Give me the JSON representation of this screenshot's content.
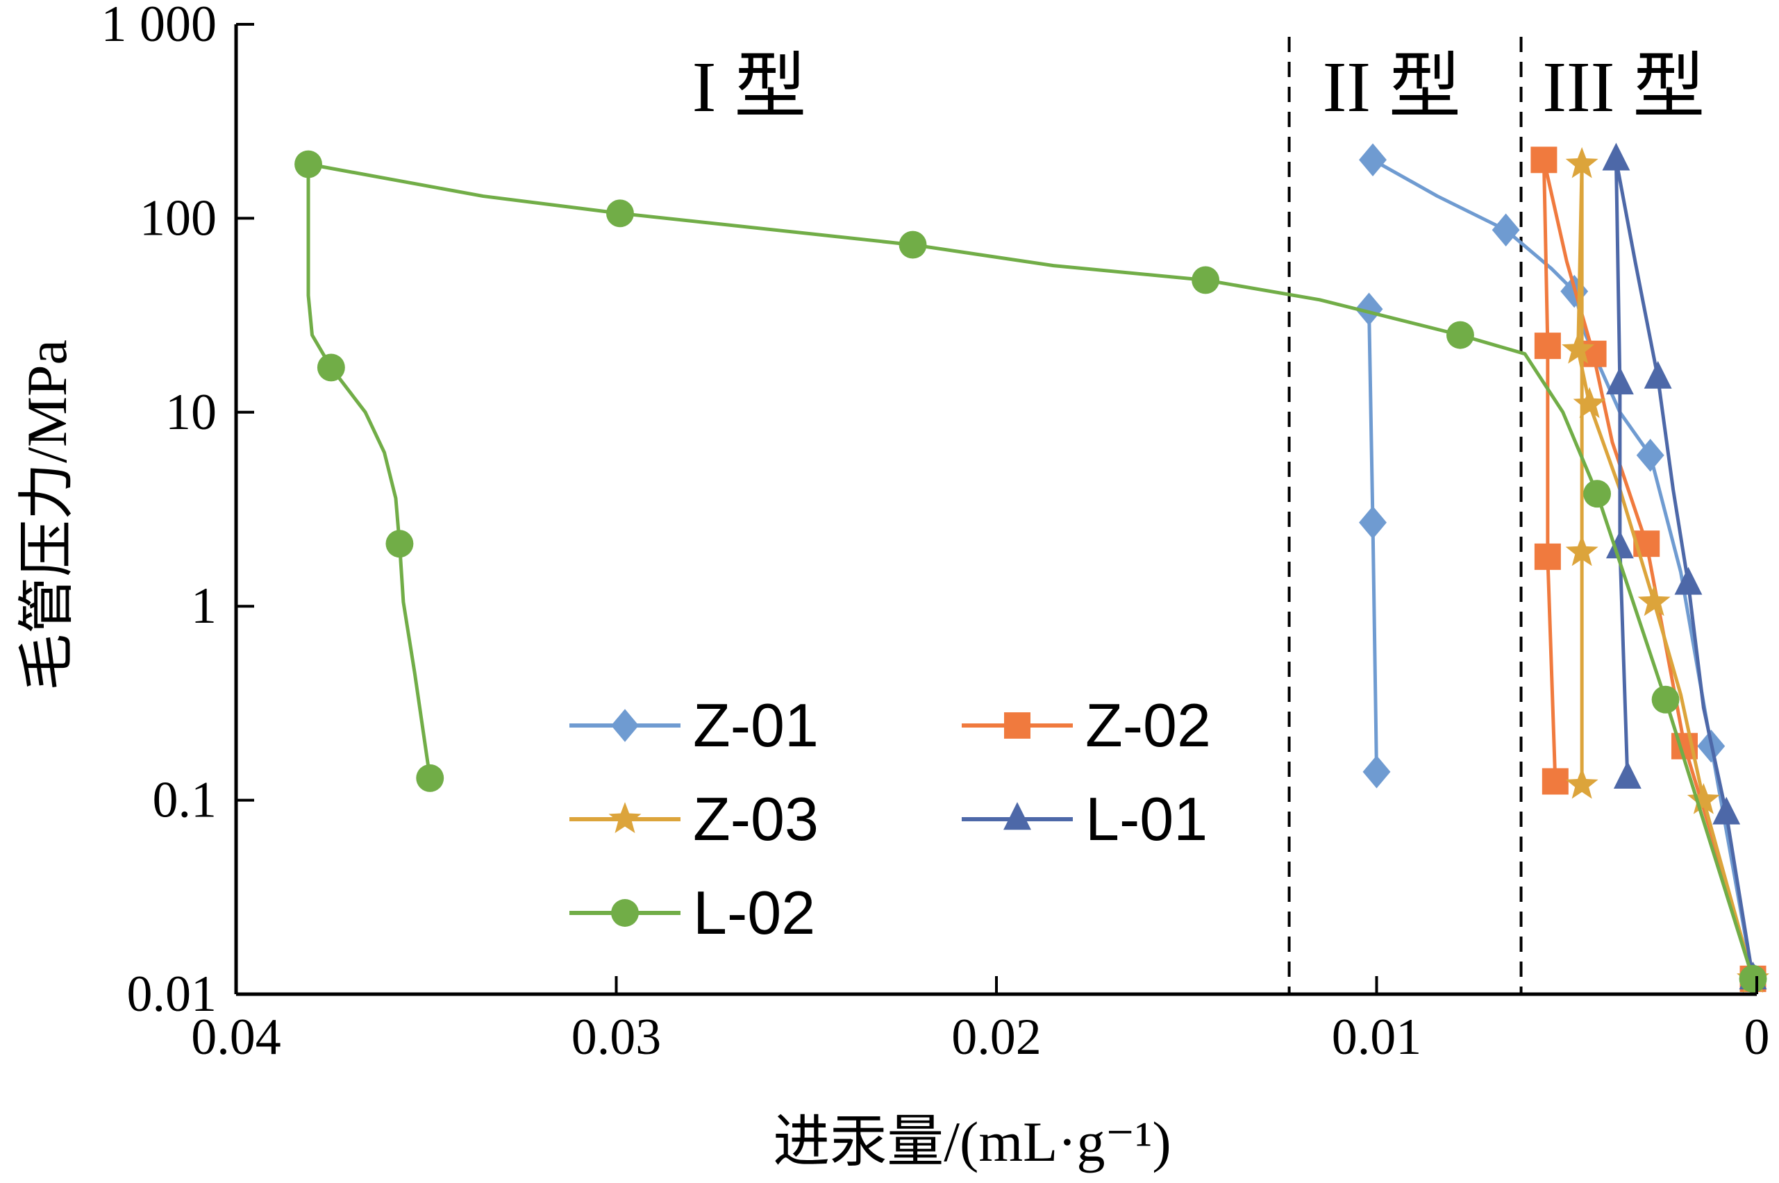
{
  "chart_data": {
    "type": "line",
    "xlabel": "进汞量/(mL·g⁻¹)",
    "ylabel": "毛管压力/MPa",
    "x_reversed": true,
    "xlim": [
      0.04,
      0
    ],
    "ylim": [
      0.01,
      1000
    ],
    "y_scale": "log",
    "x_ticks": [
      {
        "value": 0.04,
        "label": "0.04"
      },
      {
        "value": 0.03,
        "label": "0.03"
      },
      {
        "value": 0.02,
        "label": "0.02"
      },
      {
        "value": 0.01,
        "label": "0.01"
      },
      {
        "value": 0,
        "label": "0"
      }
    ],
    "y_ticks": [
      {
        "value": 1000,
        "label": "1 000"
      },
      {
        "value": 100,
        "label": "100"
      },
      {
        "value": 10,
        "label": "10"
      },
      {
        "value": 1,
        "label": "1"
      },
      {
        "value": 0.1,
        "label": "0.1"
      },
      {
        "value": 0.01,
        "label": "0.01"
      }
    ],
    "dividers": [
      0.0123,
      0.0062
    ],
    "regions": [
      {
        "label": "I 型",
        "x": 0.0265
      },
      {
        "label": "II 型",
        "x": 0.0096
      },
      {
        "label": "III 型",
        "x": 0.0035
      }
    ],
    "legend_position": "bottom-center",
    "series": [
      {
        "name": "Z-01",
        "color": "#6f9bd1",
        "marker": "diamond",
        "points": [
          [
            0.0101,
            200
          ],
          [
            0.0084,
            130
          ],
          [
            0.0066,
            87
          ],
          [
            0.0054,
            55
          ],
          [
            0.0048,
            42
          ],
          [
            0.0045,
            25
          ],
          [
            0.0036,
            10
          ],
          [
            0.0028,
            6
          ],
          [
            0.002,
            1.5
          ],
          [
            0.0012,
            0.19
          ],
          [
            0.0001,
            0.012
          ]
        ],
        "marker_points": [
          [
            0.0101,
            200
          ],
          [
            0.0066,
            87
          ],
          [
            0.0048,
            42
          ],
          [
            0.0028,
            6
          ],
          [
            0.0012,
            0.19
          ],
          [
            0.0001,
            0.012
          ]
        ],
        "tail": [
          [
            0.0102,
            34
          ],
          [
            0.0101,
            2.7
          ],
          [
            0.01,
            0.14
          ]
        ],
        "tail_markers": [
          [
            0.0102,
            34
          ],
          [
            0.0101,
            2.7
          ],
          [
            0.01,
            0.14
          ]
        ]
      },
      {
        "name": "Z-02",
        "color": "#f07a3e",
        "marker": "square",
        "points": [
          [
            0.0056,
            200
          ],
          [
            0.005,
            60
          ],
          [
            0.0043,
            20
          ],
          [
            0.0038,
            7
          ],
          [
            0.0029,
            2.1
          ],
          [
            0.0023,
            0.5
          ],
          [
            0.0019,
            0.19
          ],
          [
            0.001,
            0.05
          ],
          [
            0.0001,
            0.012
          ]
        ],
        "marker_points": [
          [
            0.0056,
            200
          ],
          [
            0.0043,
            20
          ],
          [
            0.0029,
            2.1
          ],
          [
            0.0019,
            0.19
          ],
          [
            0.0001,
            0.012
          ]
        ],
        "tail": [
          [
            0.0056,
            200
          ],
          [
            0.0055,
            22
          ],
          [
            0.0055,
            1.8
          ],
          [
            0.0053,
            0.125
          ]
        ],
        "tail_markers": [
          [
            0.0055,
            22
          ],
          [
            0.0055,
            1.8
          ],
          [
            0.0053,
            0.125
          ]
        ]
      },
      {
        "name": "Z-03",
        "color": "#dca43b",
        "marker": "star",
        "points": [
          [
            0.0046,
            190
          ],
          [
            0.0047,
            21
          ],
          [
            0.0044,
            11
          ],
          [
            0.0036,
            4
          ],
          [
            0.0027,
            1.05
          ],
          [
            0.002,
            0.35
          ],
          [
            0.0014,
            0.1
          ],
          [
            0.0001,
            0.012
          ]
        ],
        "marker_points": [
          [
            0.0046,
            190
          ],
          [
            0.0047,
            21
          ],
          [
            0.0044,
            11
          ],
          [
            0.0027,
            1.05
          ],
          [
            0.0014,
            0.1
          ],
          [
            0.0001,
            0.012
          ]
        ],
        "tail": [
          [
            0.0046,
            190
          ],
          [
            0.0046,
            1.9
          ],
          [
            0.0046,
            0.12
          ]
        ],
        "tail_markers": [
          [
            0.0046,
            1.9
          ],
          [
            0.0046,
            0.12
          ]
        ]
      },
      {
        "name": "L-01",
        "color": "#4d68a8",
        "marker": "triangle",
        "points": [
          [
            0.0037,
            200
          ],
          [
            0.0032,
            60
          ],
          [
            0.0026,
            15
          ],
          [
            0.0022,
            4
          ],
          [
            0.0018,
            1.3
          ],
          [
            0.0014,
            0.3
          ],
          [
            0.0008,
            0.085
          ],
          [
            0.0001,
            0.012
          ]
        ],
        "marker_points": [
          [
            0.0037,
            200
          ],
          [
            0.0026,
            15
          ],
          [
            0.0018,
            1.3
          ],
          [
            0.0008,
            0.085
          ],
          [
            0.0001,
            0.012
          ]
        ],
        "tail": [
          [
            0.0037,
            200
          ],
          [
            0.0036,
            14
          ],
          [
            0.0036,
            2.0
          ],
          [
            0.0034,
            0.13
          ]
        ],
        "tail_markers": [
          [
            0.0036,
            14
          ],
          [
            0.0036,
            2.0
          ],
          [
            0.0034,
            0.13
          ]
        ]
      },
      {
        "name": "L-02",
        "color": "#71ad47",
        "marker": "circle",
        "points": [
          [
            0.0035,
            0.13
          ],
          [
            0.0037,
            0.45
          ],
          [
            0.0038,
            1.05
          ],
          [
            0.0039,
            2.1
          ],
          [
            0.0039,
            3.8
          ],
          [
            0.0041,
            6.2
          ],
          [
            0.0043,
            10
          ],
          [
            0.0046,
            15
          ],
          [
            0.0048,
            17
          ],
          [
            0.0053,
            25
          ],
          [
            0.0055,
            40
          ],
          [
            0.0055,
            100
          ],
          [
            0.0056,
            190
          ],
          [
            0.0111,
            130
          ],
          [
            0.0299,
            106
          ],
          [
            0.0185,
            57
          ],
          [
            0.0145,
            48
          ],
          [
            0.0115,
            38
          ],
          [
            0.0078,
            25
          ],
          [
            0.0061,
            20
          ],
          [
            0.0051,
            10
          ],
          [
            0.0042,
            3.8
          ],
          [
            0.0024,
            0.33
          ],
          [
            0.0001,
            0.012
          ]
        ],
        "marker_points": [
          [
            0.0381,
            190
          ],
          [
            0.0375,
            17
          ],
          [
            0.0357,
            2.1
          ],
          [
            0.0349,
            0.13
          ],
          [
            0.0299,
            106
          ],
          [
            0.0222,
            73
          ],
          [
            0.0145,
            48
          ],
          [
            0.0078,
            25
          ],
          [
            0.0042,
            3.8
          ],
          [
            0.0024,
            0.33
          ],
          [
            0.0001,
            0.012
          ]
        ]
      }
    ]
  }
}
